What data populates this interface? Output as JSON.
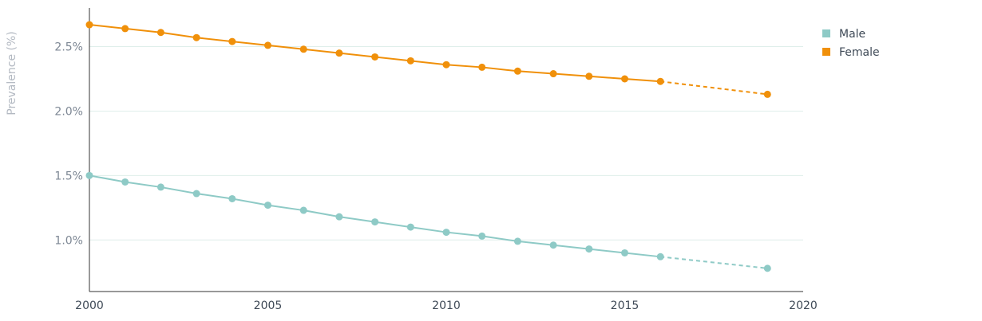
{
  "chart_data": {
    "type": "line",
    "title": "",
    "xlabel": "",
    "ylabel": "Prevalence (%)",
    "xlim": [
      2000,
      2020
    ],
    "ylim": [
      0.6,
      2.8
    ],
    "x_ticks": [
      2000,
      2005,
      2010,
      2015,
      2020
    ],
    "x_tick_labels": [
      "2000",
      "2005",
      "2010",
      "2015",
      "2020"
    ],
    "y_ticks": [
      1.0,
      1.5,
      2.0,
      2.5
    ],
    "y_tick_labels": [
      "1.0%",
      "1.5%",
      "2.0%",
      "2.5%"
    ],
    "grid": "horizontal",
    "legend_position": "top-right",
    "series": [
      {
        "name": "Male",
        "color": "#8ecac6",
        "x": [
          2000,
          2001,
          2002,
          2003,
          2004,
          2005,
          2006,
          2007,
          2008,
          2009,
          2010,
          2011,
          2012,
          2013,
          2014,
          2015,
          2016,
          2019
        ],
        "values": [
          1.5,
          1.45,
          1.41,
          1.36,
          1.32,
          1.27,
          1.23,
          1.18,
          1.14,
          1.1,
          1.06,
          1.03,
          0.99,
          0.96,
          0.93,
          0.9,
          0.87,
          0.78
        ],
        "projected_from_index": 16
      },
      {
        "name": "Female",
        "color": "#f0900a",
        "x": [
          2000,
          2001,
          2002,
          2003,
          2004,
          2005,
          2006,
          2007,
          2008,
          2009,
          2010,
          2011,
          2012,
          2013,
          2014,
          2015,
          2016,
          2019
        ],
        "values": [
          2.67,
          2.64,
          2.61,
          2.57,
          2.54,
          2.51,
          2.48,
          2.45,
          2.42,
          2.39,
          2.36,
          2.34,
          2.31,
          2.29,
          2.27,
          2.25,
          2.23,
          2.13
        ],
        "projected_from_index": 16
      }
    ]
  }
}
